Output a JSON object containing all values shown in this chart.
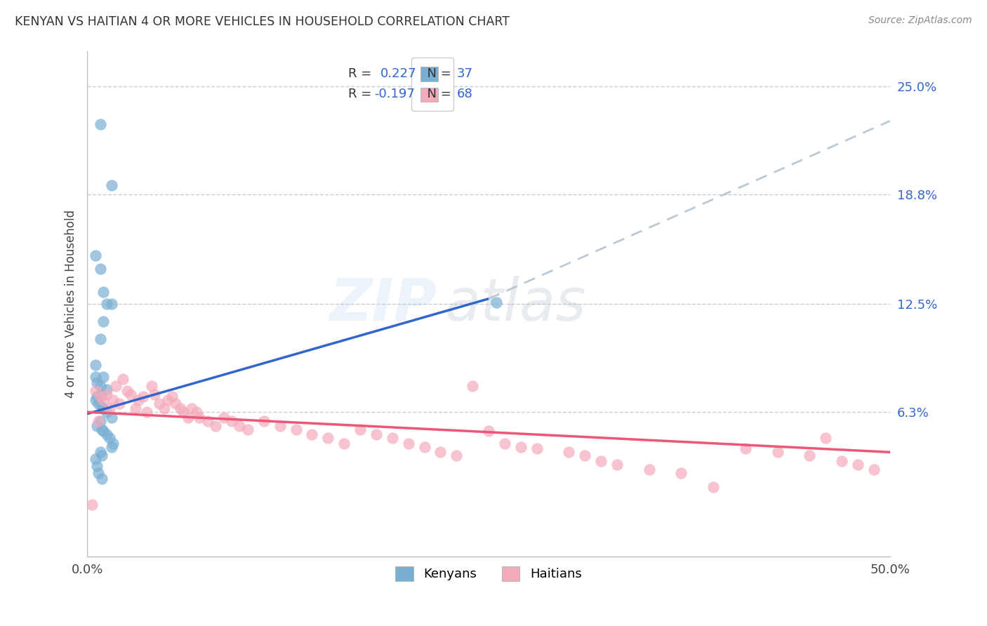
{
  "title": "KENYAN VS HAITIAN 4 OR MORE VEHICLES IN HOUSEHOLD CORRELATION CHART",
  "source": "Source: ZipAtlas.com",
  "ylabel": "4 or more Vehicles in Household",
  "xlim": [
    0.0,
    0.5
  ],
  "ylim": [
    -0.02,
    0.27
  ],
  "kenyan_color": "#7AAFD4",
  "haitian_color": "#F4AABB",
  "kenyan_line_color": "#3366CC",
  "haitian_line_color": "#EE5577",
  "kenyan_R": 0.227,
  "kenyan_N": 37,
  "haitian_R": -0.197,
  "haitian_N": 68,
  "ytick_values": [
    0.063,
    0.125,
    0.188,
    0.25
  ],
  "ytick_labels": [
    "6.3%",
    "12.5%",
    "18.8%",
    "25.0%"
  ],
  "background_color": "#FFFFFF",
  "grid_color": "#CCCCCC",
  "kenyan_line_start_x": 0.0,
  "kenyan_line_start_y": 0.062,
  "kenyan_line_solid_end_x": 0.25,
  "kenyan_line_solid_end_y": 0.128,
  "kenyan_line_dash_end_x": 0.5,
  "kenyan_line_dash_end_y": 0.23,
  "haitian_line_start_x": 0.0,
  "haitian_line_start_y": 0.063,
  "haitian_line_end_x": 0.5,
  "haitian_line_end_y": 0.04,
  "kenyan_x": [
    0.008,
    0.015,
    0.005,
    0.008,
    0.01,
    0.012,
    0.015,
    0.01,
    0.008,
    0.005,
    0.005,
    0.01,
    0.006,
    0.008,
    0.012,
    0.008,
    0.006,
    0.005,
    0.007,
    0.009,
    0.01,
    0.012,
    0.015,
    0.008,
    0.006,
    0.009,
    0.01,
    0.012,
    0.014,
    0.016,
    0.015,
    0.008,
    0.009,
    0.005,
    0.006,
    0.007,
    0.009
  ],
  "kenyan_y": [
    0.228,
    0.193,
    0.153,
    0.145,
    0.132,
    0.125,
    0.125,
    0.115,
    0.105,
    0.09,
    0.083,
    0.083,
    0.08,
    0.078,
    0.076,
    0.073,
    0.072,
    0.07,
    0.068,
    0.066,
    0.065,
    0.063,
    0.06,
    0.058,
    0.055,
    0.053,
    0.052,
    0.05,
    0.048,
    0.045,
    0.043,
    0.04,
    0.038,
    0.036,
    0.032,
    0.028,
    0.025
  ],
  "kenyan_outlier_x": [
    0.255
  ],
  "kenyan_outlier_y": [
    0.126
  ],
  "haitian_x": [
    0.003,
    0.005,
    0.007,
    0.008,
    0.01,
    0.012,
    0.014,
    0.016,
    0.018,
    0.02,
    0.022,
    0.025,
    0.027,
    0.03,
    0.032,
    0.035,
    0.037,
    0.04,
    0.042,
    0.045,
    0.048,
    0.05,
    0.053,
    0.055,
    0.058,
    0.06,
    0.063,
    0.065,
    0.068,
    0.07,
    0.075,
    0.08,
    0.085,
    0.09,
    0.095,
    0.1,
    0.11,
    0.12,
    0.13,
    0.14,
    0.15,
    0.16,
    0.17,
    0.18,
    0.19,
    0.2,
    0.21,
    0.22,
    0.23,
    0.24,
    0.25,
    0.26,
    0.27,
    0.28,
    0.3,
    0.31,
    0.32,
    0.33,
    0.35,
    0.37,
    0.39,
    0.41,
    0.43,
    0.45,
    0.46,
    0.47,
    0.48,
    0.49
  ],
  "haitian_y": [
    0.01,
    0.075,
    0.058,
    0.072,
    0.07,
    0.073,
    0.065,
    0.07,
    0.078,
    0.068,
    0.082,
    0.075,
    0.073,
    0.065,
    0.07,
    0.072,
    0.063,
    0.078,
    0.073,
    0.068,
    0.065,
    0.07,
    0.072,
    0.068,
    0.065,
    0.063,
    0.06,
    0.065,
    0.063,
    0.06,
    0.058,
    0.055,
    0.06,
    0.058,
    0.055,
    0.053,
    0.058,
    0.055,
    0.053,
    0.05,
    0.048,
    0.045,
    0.053,
    0.05,
    0.048,
    0.045,
    0.043,
    0.04,
    0.038,
    0.078,
    0.052,
    0.045,
    0.043,
    0.042,
    0.04,
    0.038,
    0.035,
    0.033,
    0.03,
    0.028,
    0.02,
    0.042,
    0.04,
    0.038,
    0.048,
    0.035,
    0.033,
    0.03
  ]
}
